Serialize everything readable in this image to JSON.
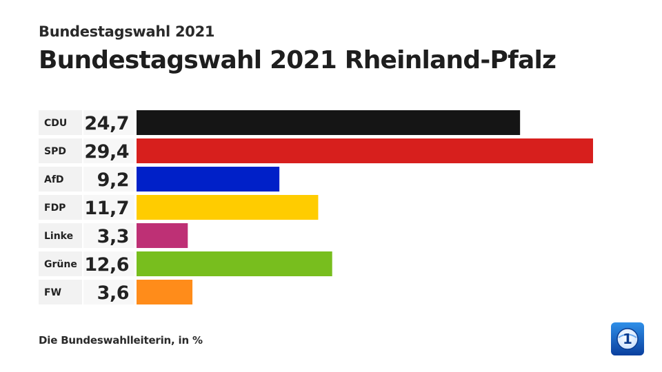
{
  "header": {
    "subtitle": "Bundestagswahl 2021",
    "title": "Bundestagswahl 2021 Rheinland-Pfalz"
  },
  "footer": {
    "source": "Die Bundeswahlleiterin, in %"
  },
  "chart_data": {
    "type": "bar",
    "orientation": "horizontal",
    "categories": [
      "CDU",
      "SPD",
      "AfD",
      "FDP",
      "Linke",
      "Grüne",
      "FW"
    ],
    "values": [
      24.7,
      29.4,
      9.2,
      11.7,
      3.3,
      12.6,
      3.6
    ],
    "value_labels": [
      "24,7",
      "29,4",
      "9,2",
      "11,7",
      "3,3",
      "12,6",
      "3,6"
    ],
    "colors": [
      "#151515",
      "#d71f1d",
      "#0020c8",
      "#ffcc00",
      "#be3075",
      "#78be1e",
      "#ff8c1a"
    ],
    "title": "Bundestagswahl 2021 Rheinland-Pfalz",
    "subtitle": "Bundestagswahl 2021",
    "unit": "%",
    "grid": false,
    "legend": "none"
  },
  "logo": {
    "icon": "ard-tagesschau-logo-icon",
    "text": "1"
  }
}
